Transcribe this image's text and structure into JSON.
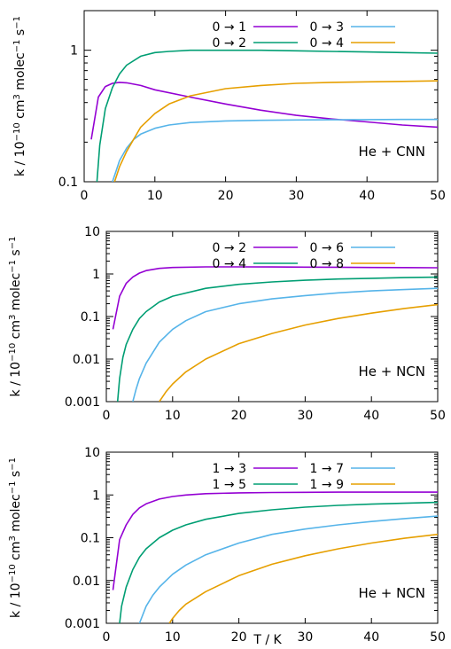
{
  "chart_data": [
    {
      "type": "line",
      "title": "",
      "xlabel": "",
      "ylabel": "k / 10^-10 cm^3 molec^-1 s^-1",
      "xlim": [
        0,
        50
      ],
      "ylim": [
        0.1,
        2
      ],
      "yscale": "log",
      "xticks": [
        "0",
        "10",
        "20",
        "30",
        "40",
        "50"
      ],
      "yticks": [
        "0.1",
        "1"
      ],
      "annotation": "He + CNN",
      "legend_position": "top-right",
      "series": [
        {
          "name": "0 → 1",
          "color": "#9400d3",
          "x": [
            1,
            2,
            3,
            4,
            5,
            6,
            8,
            10,
            15,
            20,
            25,
            30,
            35,
            40,
            45,
            50
          ],
          "y": [
            0.21,
            0.44,
            0.53,
            0.56,
            0.57,
            0.565,
            0.54,
            0.5,
            0.44,
            0.39,
            0.35,
            0.32,
            0.3,
            0.285,
            0.27,
            0.26
          ]
        },
        {
          "name": "0 → 2",
          "color": "#009e73",
          "x": [
            1.8,
            2.2,
            3,
            4,
            5,
            6,
            8,
            10,
            12,
            15,
            20,
            25,
            30,
            35,
            40,
            45,
            50
          ],
          "y": [
            0.1,
            0.19,
            0.36,
            0.52,
            0.66,
            0.77,
            0.9,
            0.96,
            0.98,
            1.0,
            1.0,
            1.0,
            0.99,
            0.98,
            0.97,
            0.96,
            0.95
          ]
        },
        {
          "name": "0 → 3",
          "color": "#56b4e9",
          "x": [
            4,
            4.5,
            5,
            6,
            7,
            8,
            10,
            12,
            15,
            20,
            25,
            30,
            35,
            40,
            45,
            50
          ],
          "y": [
            0.1,
            0.12,
            0.145,
            0.18,
            0.21,
            0.23,
            0.255,
            0.27,
            0.282,
            0.29,
            0.293,
            0.295,
            0.296,
            0.297,
            0.298,
            0.298
          ]
        },
        {
          "name": "0 → 4",
          "color": "#e69f00",
          "x": [
            4.3,
            5,
            6,
            8,
            10,
            12,
            15,
            20,
            25,
            30,
            35,
            40,
            45,
            50
          ],
          "y": [
            0.1,
            0.13,
            0.17,
            0.26,
            0.33,
            0.39,
            0.45,
            0.51,
            0.54,
            0.56,
            0.57,
            0.575,
            0.58,
            0.585
          ]
        }
      ]
    },
    {
      "type": "line",
      "title": "",
      "xlabel": "",
      "ylabel": "k / 10^-10 cm^3 molec^-1 s^-1",
      "xlim": [
        0,
        50
      ],
      "ylim": [
        0.001,
        10
      ],
      "yscale": "log",
      "xticks": [
        "0",
        "10",
        "20",
        "30",
        "40",
        "50"
      ],
      "yticks": [
        "0.001",
        "0.01",
        "0.1",
        "1",
        "10"
      ],
      "annotation": "He + NCN",
      "legend_position": "top-right",
      "series": [
        {
          "name": "0 → 2",
          "color": "#9400d3",
          "x": [
            1,
            2,
            3,
            4,
            5,
            6,
            8,
            10,
            15,
            20,
            25,
            30,
            35,
            40,
            45,
            50
          ],
          "y": [
            0.05,
            0.3,
            0.6,
            0.85,
            1.05,
            1.2,
            1.35,
            1.42,
            1.47,
            1.47,
            1.46,
            1.45,
            1.44,
            1.42,
            1.41,
            1.4
          ]
        },
        {
          "name": "0 → 4",
          "color": "#009e73",
          "x": [
            1.7,
            2,
            2.5,
            3,
            4,
            5,
            6,
            8,
            10,
            15,
            20,
            25,
            30,
            35,
            40,
            45,
            50
          ],
          "y": [
            0.001,
            0.0035,
            0.011,
            0.022,
            0.05,
            0.09,
            0.13,
            0.22,
            0.3,
            0.46,
            0.57,
            0.65,
            0.71,
            0.76,
            0.79,
            0.82,
            0.84
          ]
        },
        {
          "name": "0 → 6",
          "color": "#56b4e9",
          "x": [
            4,
            4.5,
            5,
            6,
            8,
            10,
            12,
            15,
            20,
            25,
            30,
            35,
            40,
            45,
            50
          ],
          "y": [
            0.001,
            0.002,
            0.0035,
            0.008,
            0.025,
            0.05,
            0.08,
            0.13,
            0.2,
            0.26,
            0.31,
            0.36,
            0.4,
            0.43,
            0.46
          ]
        },
        {
          "name": "0 → 8",
          "color": "#e69f00",
          "x": [
            8,
            9,
            10,
            12,
            15,
            20,
            25,
            30,
            35,
            40,
            45,
            50
          ],
          "y": [
            0.001,
            0.0017,
            0.0026,
            0.005,
            0.01,
            0.023,
            0.04,
            0.063,
            0.09,
            0.12,
            0.155,
            0.19
          ]
        }
      ]
    },
    {
      "type": "line",
      "title": "",
      "xlabel": "T / K",
      "ylabel": "k / 10^-10 cm^3 molec^-1 s^-1",
      "xlim": [
        0,
        50
      ],
      "ylim": [
        0.001,
        10
      ],
      "yscale": "log",
      "xticks": [
        "0",
        "10",
        "20",
        "30",
        "40",
        "50"
      ],
      "yticks": [
        "0.001",
        "0.01",
        "0.1",
        "1",
        "10"
      ],
      "annotation": "He + NCN",
      "legend_position": "top-right",
      "series": [
        {
          "name": "1 → 3",
          "color": "#9400d3",
          "x": [
            1,
            2,
            3,
            4,
            5,
            6,
            8,
            10,
            12,
            15,
            20,
            25,
            30,
            35,
            40,
            45,
            50
          ],
          "y": [
            0.006,
            0.09,
            0.2,
            0.35,
            0.5,
            0.62,
            0.8,
            0.92,
            1.0,
            1.07,
            1.12,
            1.14,
            1.15,
            1.16,
            1.16,
            1.16,
            1.16
          ]
        },
        {
          "name": "1 → 5",
          "color": "#009e73",
          "x": [
            2,
            2.3,
            3,
            4,
            5,
            6,
            8,
            10,
            12,
            15,
            20,
            25,
            30,
            35,
            40,
            45,
            50
          ],
          "y": [
            0.001,
            0.0025,
            0.007,
            0.018,
            0.035,
            0.055,
            0.1,
            0.15,
            0.2,
            0.27,
            0.37,
            0.45,
            0.52,
            0.57,
            0.61,
            0.64,
            0.67
          ]
        },
        {
          "name": "1 → 7",
          "color": "#56b4e9",
          "x": [
            5,
            6,
            7,
            8,
            10,
            12,
            15,
            20,
            25,
            30,
            35,
            40,
            45,
            50
          ],
          "y": [
            0.001,
            0.0025,
            0.0045,
            0.007,
            0.014,
            0.023,
            0.04,
            0.075,
            0.12,
            0.16,
            0.2,
            0.24,
            0.28,
            0.32
          ]
        },
        {
          "name": "1 → 9",
          "color": "#e69f00",
          "x": [
            9.5,
            10,
            11,
            12,
            15,
            20,
            25,
            30,
            35,
            40,
            45,
            50
          ],
          "y": [
            0.001,
            0.0013,
            0.002,
            0.0028,
            0.0055,
            0.013,
            0.024,
            0.038,
            0.055,
            0.075,
            0.097,
            0.12
          ]
        }
      ]
    }
  ]
}
